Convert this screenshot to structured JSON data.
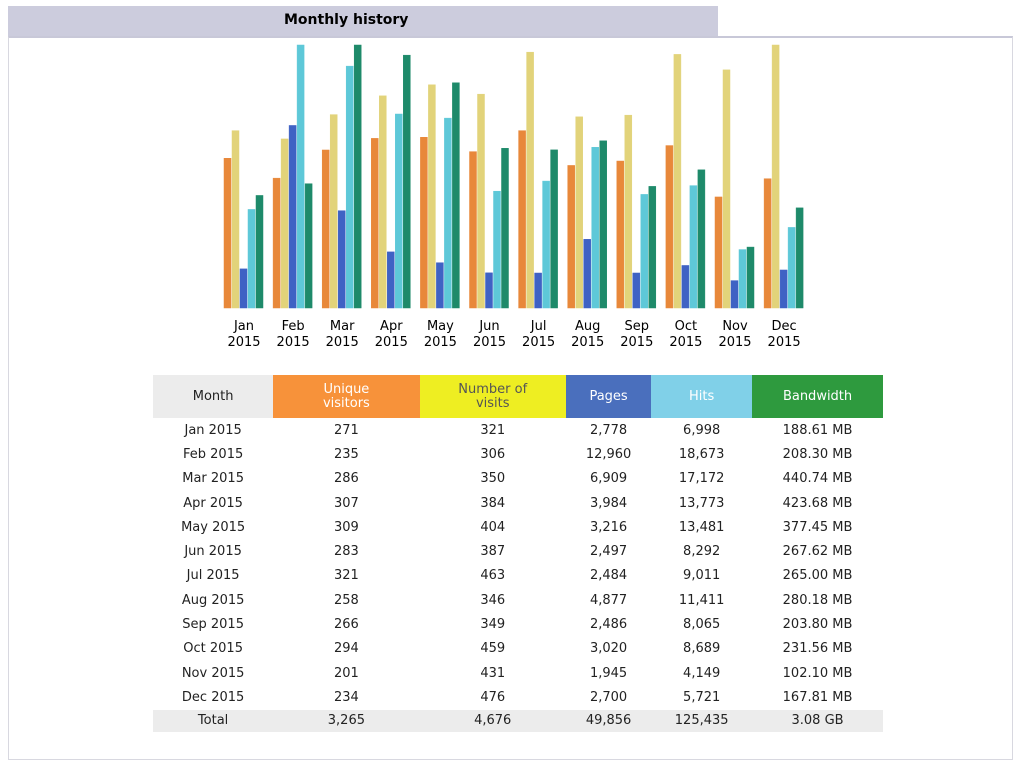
{
  "header": {
    "title": "Monthly history"
  },
  "chart_data": {
    "type": "bar",
    "categories": [
      [
        "Jan",
        "2015"
      ],
      [
        "Feb",
        "2015"
      ],
      [
        "Mar",
        "2015"
      ],
      [
        "Apr",
        "2015"
      ],
      [
        "May",
        "2015"
      ],
      [
        "Jun",
        "2015"
      ],
      [
        "Jul",
        "2015"
      ],
      [
        "Aug",
        "2015"
      ],
      [
        "Sep",
        "2015"
      ],
      [
        "Oct",
        "2015"
      ],
      [
        "Nov",
        "2015"
      ],
      [
        "Dec",
        "2015"
      ]
    ],
    "series": [
      {
        "name": "Unique visitors",
        "color": "#e8883a",
        "header_color": "#f7923a",
        "values": [
          271,
          235,
          286,
          307,
          309,
          283,
          321,
          258,
          266,
          294,
          201,
          234
        ],
        "value_labels": [
          "271",
          "235",
          "286",
          "307",
          "309",
          "283",
          "321",
          "258",
          "266",
          "294",
          "201",
          "234"
        ]
      },
      {
        "name": "Number of visits",
        "color": "#e2d37a",
        "header_color": "#eeee22",
        "values": [
          321,
          306,
          350,
          384,
          404,
          387,
          463,
          346,
          349,
          459,
          431,
          476
        ],
        "value_labels": [
          "321",
          "306",
          "350",
          "384",
          "404",
          "387",
          "463",
          "346",
          "349",
          "459",
          "431",
          "476"
        ]
      },
      {
        "name": "Pages",
        "color": "#3f62c4",
        "header_color": "#4a6fbd",
        "values": [
          2778,
          12960,
          6909,
          3984,
          3216,
          2497,
          2484,
          4877,
          2486,
          3020,
          1945,
          2700
        ],
        "value_labels": [
          "2,778",
          "12,960",
          "6,909",
          "3,984",
          "3,216",
          "2,497",
          "2,484",
          "4,877",
          "2,486",
          "3,020",
          "1,945",
          "2,700"
        ]
      },
      {
        "name": "Hits",
        "color": "#5ec8d8",
        "header_color": "#80d0e8",
        "values": [
          6998,
          18673,
          17172,
          13773,
          13481,
          8292,
          9011,
          11411,
          8065,
          8689,
          4149,
          5721
        ],
        "value_labels": [
          "6,998",
          "18,673",
          "17,172",
          "13,773",
          "13,481",
          "8,292",
          "9,011",
          "11,411",
          "8,065",
          "8,689",
          "4,149",
          "5,721"
        ]
      },
      {
        "name": "Bandwidth",
        "color": "#1e8a6a",
        "header_color": "#2e9a3e",
        "values": [
          188.61,
          208.3,
          440.74,
          423.68,
          377.45,
          267.62,
          265.0,
          280.18,
          203.8,
          231.56,
          102.1,
          167.81
        ],
        "value_labels": [
          "188.61 MB",
          "208.30 MB",
          "440.74 MB",
          "423.68 MB",
          "377.45 MB",
          "267.62 MB",
          "265.00 MB",
          "280.18 MB",
          "203.80 MB",
          "231.56 MB",
          "102.10 MB",
          "167.81 MB"
        ]
      }
    ]
  },
  "table": {
    "month_header": "Month",
    "months": [
      "Jan 2015",
      "Feb 2015",
      "Mar 2015",
      "Apr 2015",
      "May 2015",
      "Jun 2015",
      "Jul 2015",
      "Aug 2015",
      "Sep 2015",
      "Oct 2015",
      "Nov 2015",
      "Dec 2015"
    ],
    "total_label": "Total",
    "totals": [
      "3,265",
      "4,676",
      "49,856",
      "125,435",
      "3.08 GB"
    ]
  }
}
